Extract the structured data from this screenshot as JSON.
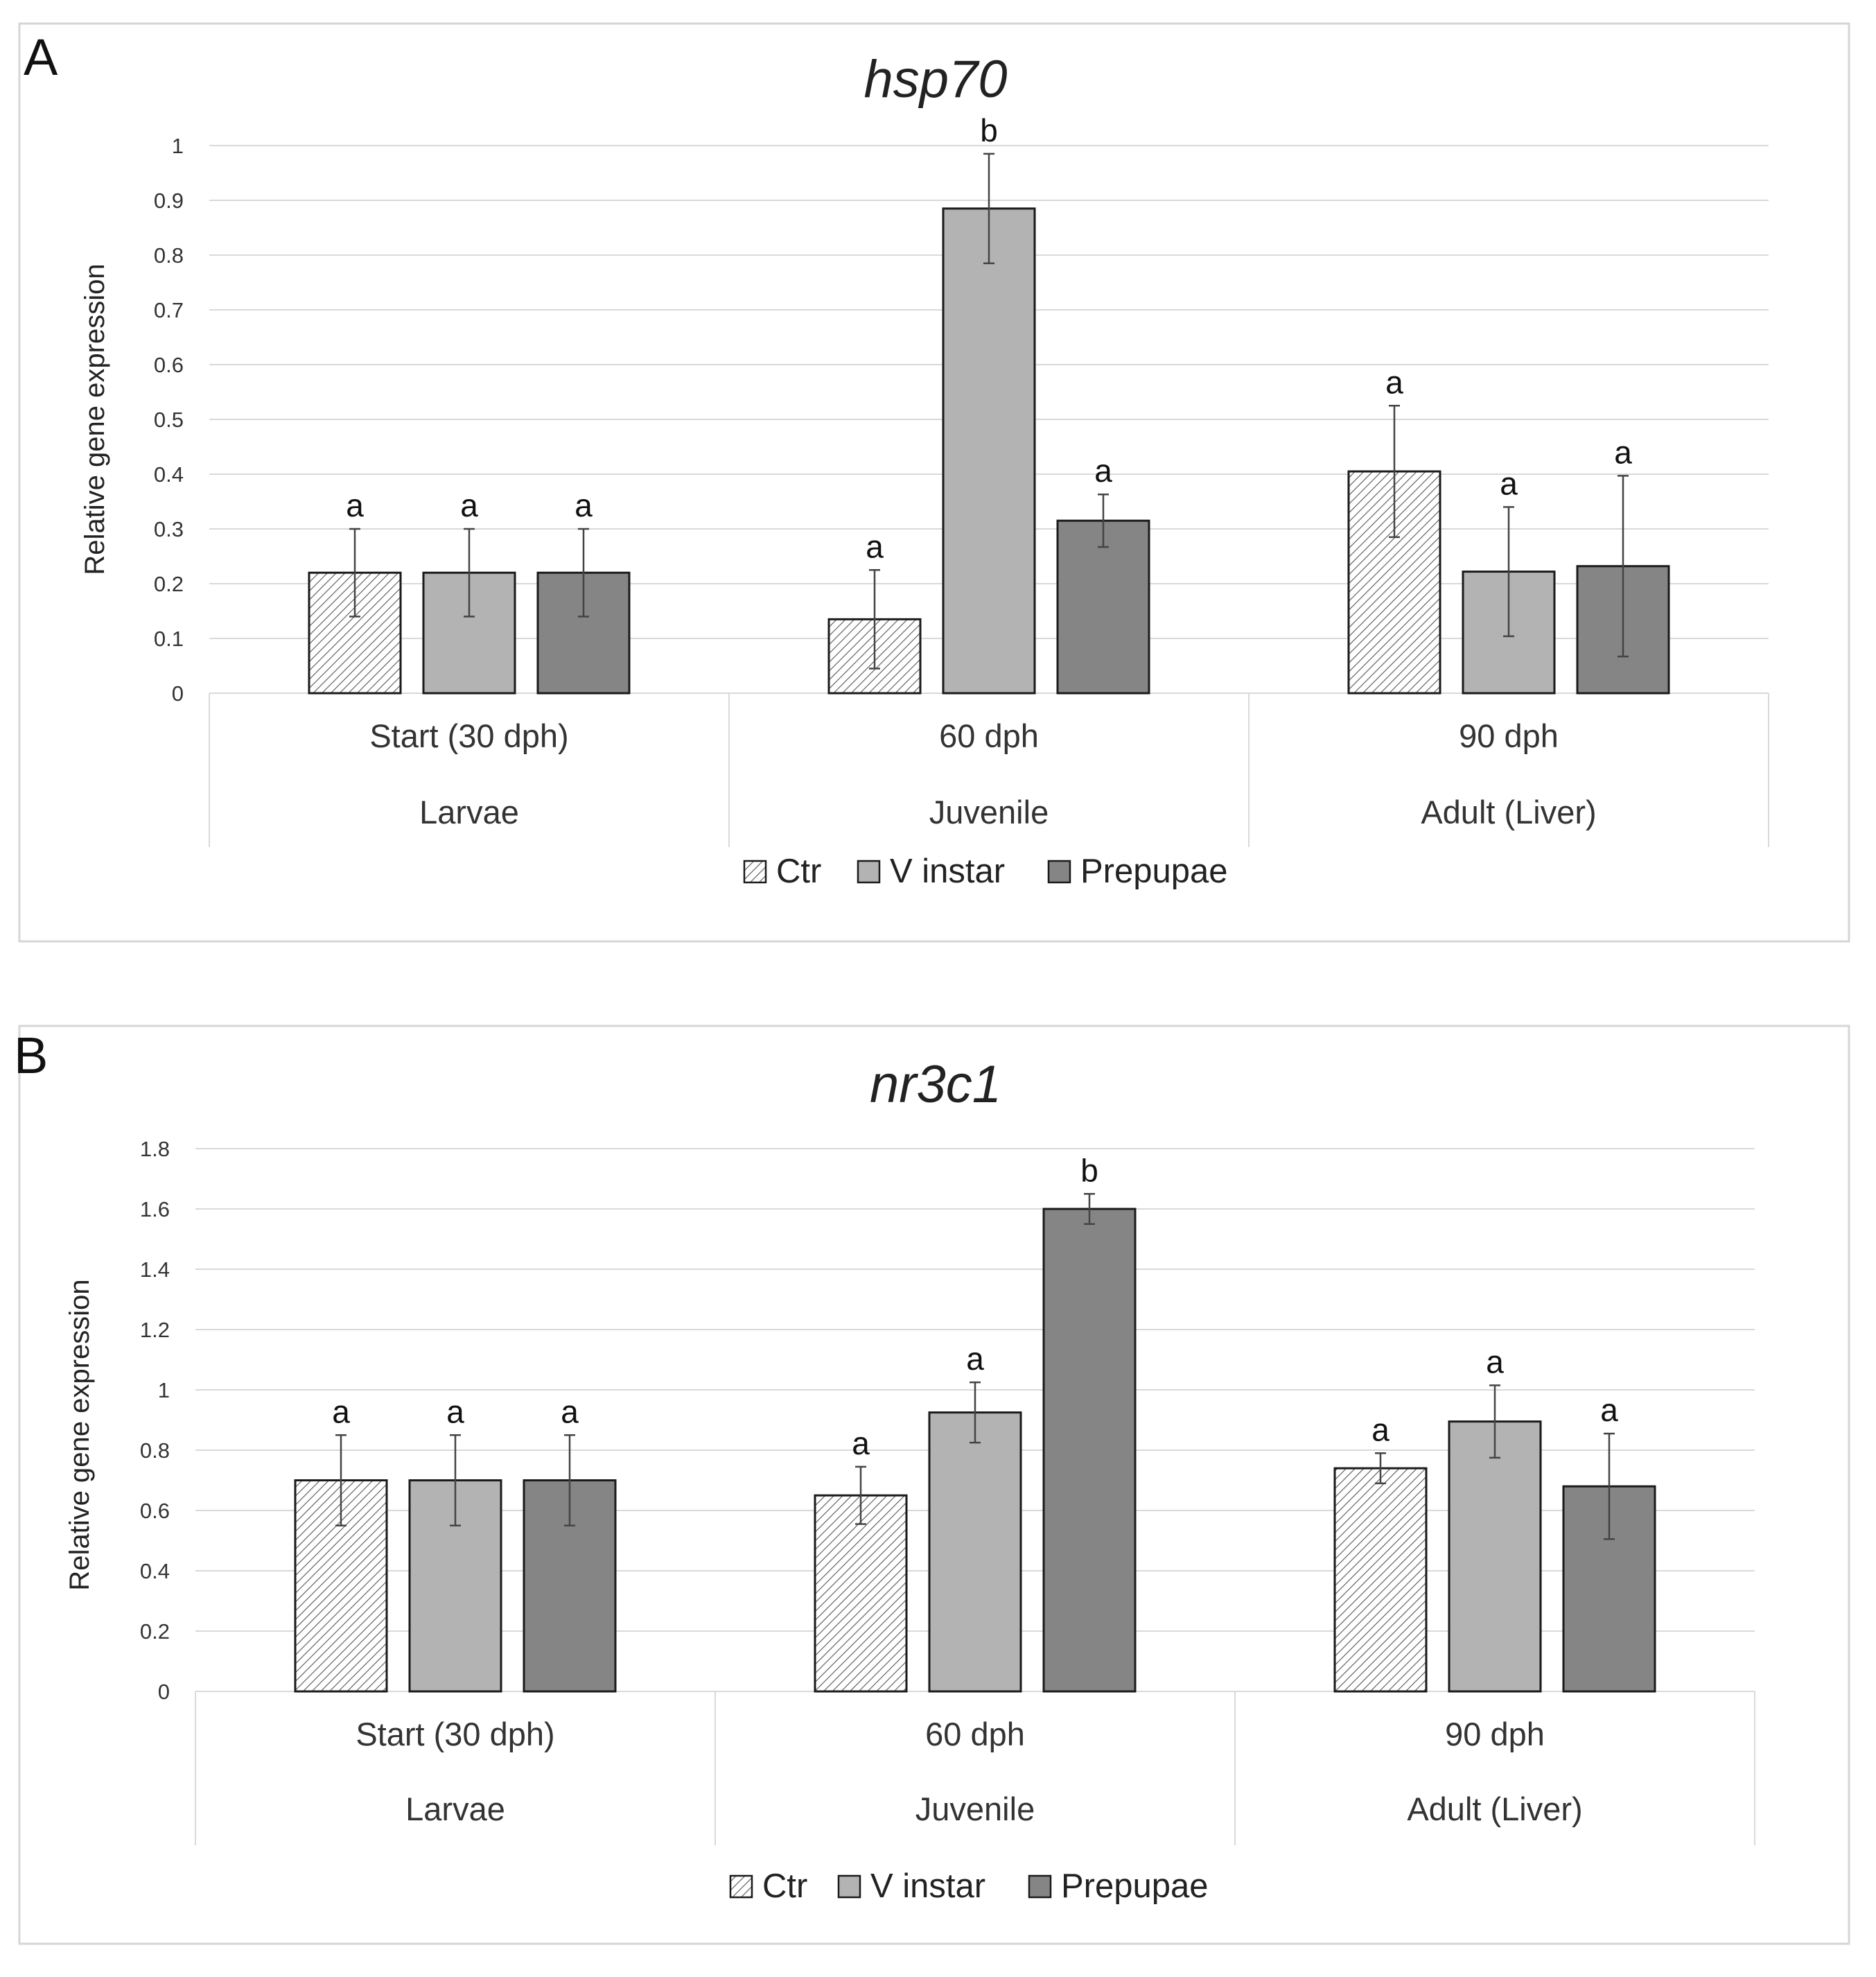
{
  "chart_data": [
    {
      "type": "bar",
      "panel_label": "A",
      "title": "hsp70",
      "ylabel": "Relative gene expression",
      "xlabel": "",
      "ylim": [
        0,
        1
      ],
      "yticks": [
        "0",
        "0.1",
        "0.2",
        "0.3",
        "0.4",
        "0.5",
        "0.6",
        "0.7",
        "0.8",
        "0.9",
        "1"
      ],
      "grid": true,
      "categories": [
        "Start (30 dph)",
        "60 dph",
        "90 dph"
      ],
      "category_groups": [
        "Larvae",
        "Juvenile",
        "Adult (Liver)"
      ],
      "series": [
        {
          "name": "Ctr",
          "fill": "hatch",
          "color": "#ffffff",
          "values": [
            0.22,
            0.135,
            0.405
          ],
          "errors": [
            0.08,
            0.09,
            0.12
          ],
          "labels": [
            "a",
            "a",
            "a"
          ]
        },
        {
          "name": "V instar",
          "fill": "solid",
          "color": "#b3b3b3",
          "values": [
            0.22,
            0.885,
            0.222
          ],
          "errors": [
            0.08,
            0.1,
            0.118
          ],
          "labels": [
            "a",
            "b",
            "a"
          ]
        },
        {
          "name": "Prepupae",
          "fill": "solid",
          "color": "#858585",
          "values": [
            0.22,
            0.315,
            0.232
          ],
          "errors": [
            0.08,
            0.048,
            0.165
          ],
          "labels": [
            "a",
            "a",
            "a"
          ]
        }
      ],
      "legend": "bottom"
    },
    {
      "type": "bar",
      "panel_label": "B",
      "title": "nr3c1",
      "ylabel": "Relative gene expression",
      "xlabel": "",
      "ylim": [
        0,
        1.8
      ],
      "yticks": [
        "0",
        "0.2",
        "0.4",
        "0.6",
        "0.8",
        "1",
        "1.2",
        "1.4",
        "1.6",
        "1.8"
      ],
      "grid": true,
      "categories": [
        "Start (30 dph)",
        "60 dph",
        "90 dph"
      ],
      "category_groups": [
        "Larvae",
        "Juvenile",
        "Adult (Liver)"
      ],
      "series": [
        {
          "name": "Ctr",
          "fill": "hatch",
          "color": "#ffffff",
          "values": [
            0.7,
            0.65,
            0.74
          ],
          "errors": [
            0.15,
            0.095,
            0.05
          ],
          "labels": [
            "a",
            "a",
            "a"
          ]
        },
        {
          "name": "V instar",
          "fill": "solid",
          "color": "#b3b3b3",
          "values": [
            0.7,
            0.925,
            0.895
          ],
          "errors": [
            0.15,
            0.1,
            0.12
          ],
          "labels": [
            "a",
            "a",
            "a"
          ]
        },
        {
          "name": "Prepupae",
          "fill": "solid",
          "color": "#858585",
          "values": [
            0.7,
            1.6,
            0.68
          ],
          "errors": [
            0.15,
            0.05,
            0.175
          ],
          "labels": [
            "a",
            "b",
            "a"
          ]
        }
      ],
      "legend": "bottom"
    }
  ]
}
